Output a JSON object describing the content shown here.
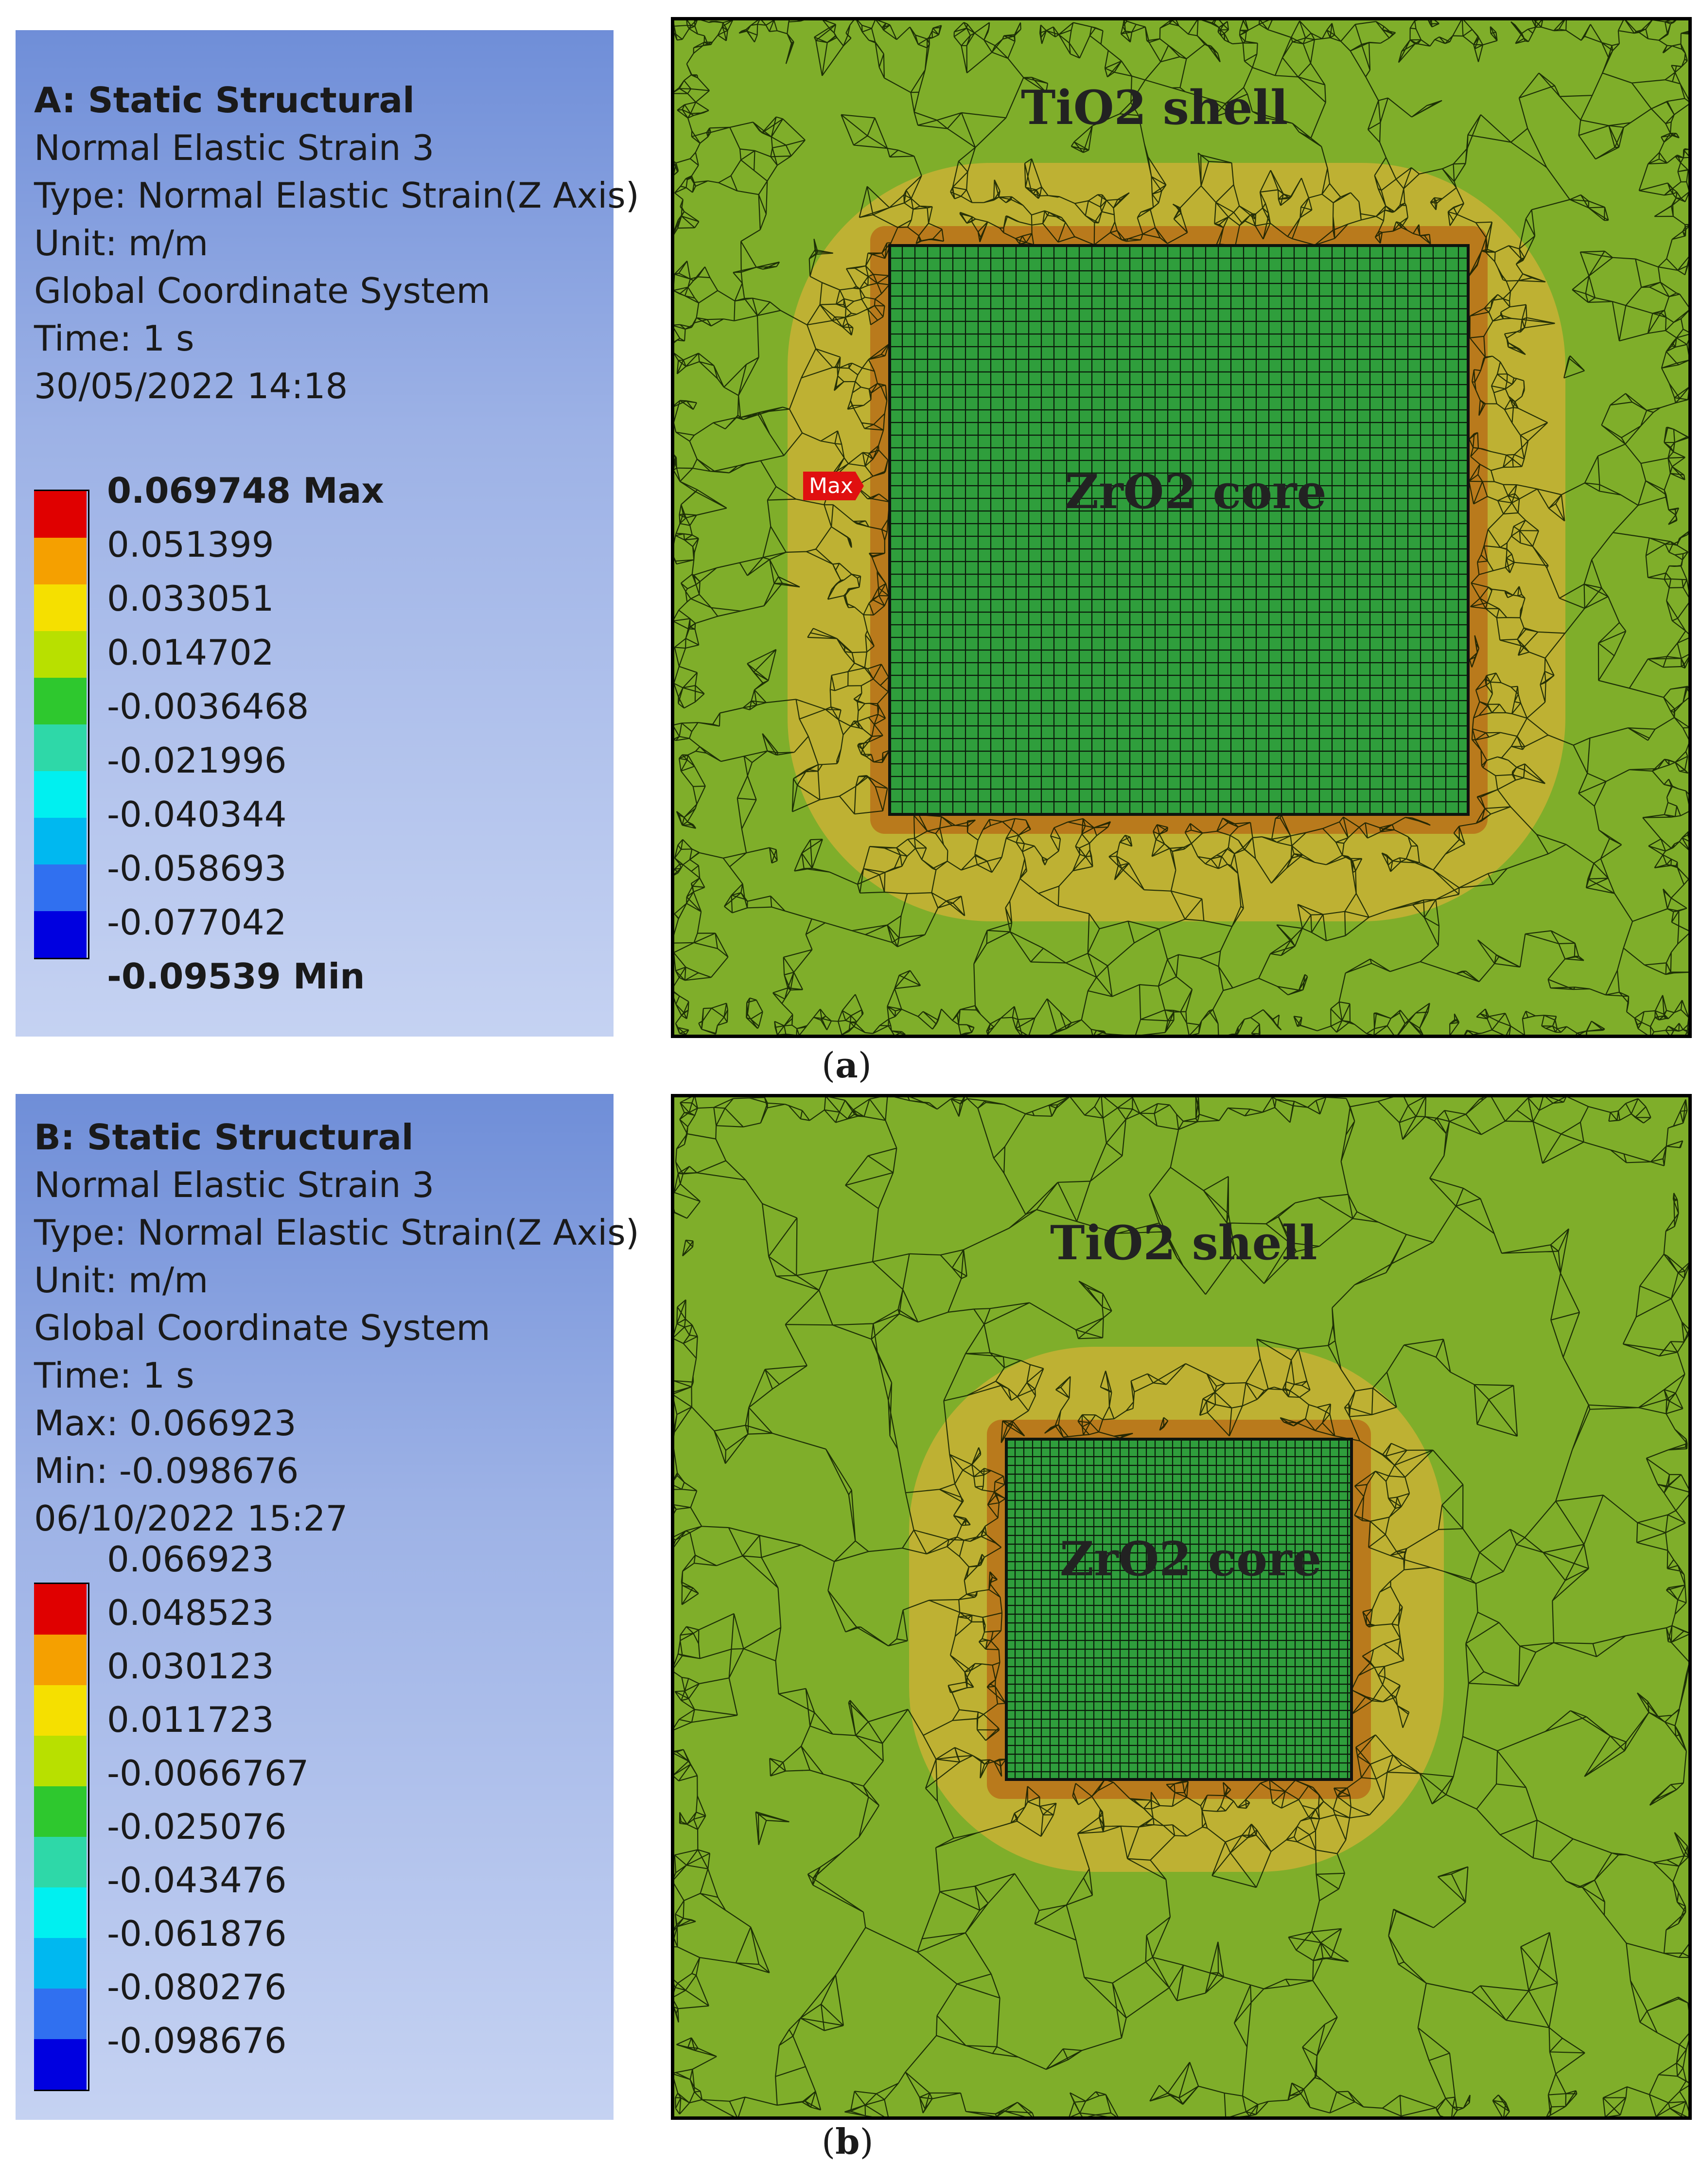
{
  "panel_a": {
    "title": "A: Static Structural",
    "lines": [
      "Normal Elastic Strain 3",
      "Type: Normal Elastic Strain(Z Axis)",
      "Unit: m/m",
      "Global Coordinate System",
      "Time: 1 s",
      "30/05/2022 14:18"
    ],
    "legend": [
      "0.069748 Max",
      "0.051399",
      "0.033051",
      "0.014702",
      "-0.0036468",
      "-0.021996",
      "-0.040344",
      "-0.058693",
      "-0.077042",
      "-0.09539 Min"
    ],
    "shell_label": "TiO2 shell",
    "core_label": "ZrO2 core",
    "max_tag": "Max",
    "caption": "a"
  },
  "panel_b": {
    "title": "B: Static Structural",
    "lines": [
      "Normal Elastic Strain 3",
      "Type: Normal Elastic Strain(Z Axis)",
      "Unit: m/m",
      "Global Coordinate System",
      "Time: 1 s",
      "Max: 0.066923",
      "Min: -0.098676",
      "06/10/2022 15:27"
    ],
    "legend": [
      "0.066923",
      "0.048523",
      "0.030123",
      "0.011723",
      "-0.0066767",
      "-0.025076",
      "-0.043476",
      "-0.061876",
      "-0.080276",
      "-0.098676"
    ],
    "shell_label": "TiO2 shell",
    "core_label": "ZrO2 core",
    "caption": "b"
  },
  "colors": {
    "scale": [
      "#e00000",
      "#f5a000",
      "#f5e000",
      "#b8e000",
      "#2ec82e",
      "#2ed8a8",
      "#00f0f0",
      "#00b8f0",
      "#3070f0",
      "#0000e0"
    ],
    "shell_green": "#7fae2a",
    "core_green": "#2f9e3c",
    "halo_orange": "#b8741a",
    "halo_yellow": "#c9b235"
  }
}
